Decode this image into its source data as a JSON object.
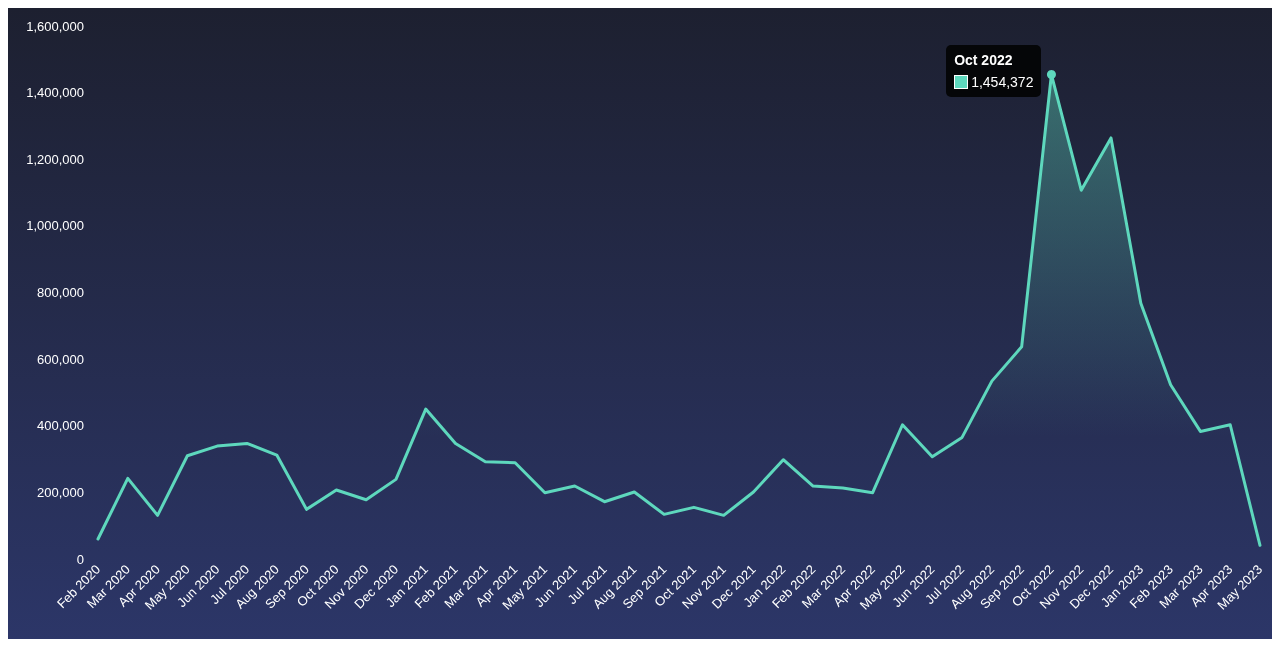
{
  "chart_data": {
    "type": "area",
    "categories": [
      "Feb 2020",
      "Mar 2020",
      "Apr 2020",
      "May 2020",
      "Jun 2020",
      "Jul 2020",
      "Aug 2020",
      "Sep 2020",
      "Oct 2020",
      "Nov 2020",
      "Dec 2020",
      "Jan 2021",
      "Feb 2021",
      "Mar 2021",
      "Apr 2021",
      "May 2021",
      "Jun 2021",
      "Jul 2021",
      "Aug 2021",
      "Sep 2021",
      "Oct 2021",
      "Nov 2021",
      "Dec 2021",
      "Jan 2022",
      "Feb 2022",
      "Mar 2022",
      "Apr 2022",
      "May 2022",
      "Jun 2022",
      "Jul 2022",
      "Aug 2022",
      "Sep 2022",
      "Oct 2022",
      "Nov 2022",
      "Dec 2022",
      "Jan 2023",
      "Feb 2023",
      "Mar 2023",
      "Apr 2023",
      "May 2023"
    ],
    "series": [
      {
        "color": "#5ed8bd",
        "values": [
          60000,
          242000,
          131000,
          310000,
          339000,
          347000,
          312000,
          149000,
          207000,
          178000,
          239000,
          450000,
          347000,
          292000,
          289000,
          199000,
          219000,
          172000,
          201000,
          134000,
          155000,
          131000,
          201000,
          298000,
          219000,
          213000,
          199000,
          403000,
          307000,
          365000,
          534000,
          637000,
          1454372,
          1107000,
          1264000,
          768000,
          523000,
          383000,
          403000,
          41000
        ],
        "value_labels": [
          null,
          null,
          null,
          null,
          null,
          null,
          null,
          null,
          null,
          null,
          null,
          null,
          null,
          null,
          null,
          null,
          null,
          null,
          null,
          null,
          null,
          null,
          null,
          null,
          null,
          null,
          null,
          null,
          null,
          null,
          null,
          null,
          "1,454,372",
          null,
          null,
          null,
          null,
          null,
          null,
          null
        ]
      }
    ],
    "annotations": [
      {
        "text": "Oct 2022",
        "x": "Oct 2022",
        "y": 1454372
      }
    ],
    "ylim": [
      0,
      1600000
    ],
    "yticks": [
      0,
      {
        "value": 200000,
        "label": "200,000"
      },
      {
        "value": 400000,
        "label": "400,000"
      },
      {
        "value": 600000,
        "label": "600,000"
      },
      {
        "value": 800000,
        "label": "800,000"
      },
      {
        "value": 1000000,
        "label": "1,000,000"
      },
      {
        "value": 1200000,
        "label": "1,200,000"
      },
      {
        "value": 1400000,
        "label": "1,400,000"
      },
      {
        "value": 1600000,
        "label": "1,600,000"
      }
    ],
    "grid": false,
    "marker": "none",
    "line_style": "solid"
  }
}
